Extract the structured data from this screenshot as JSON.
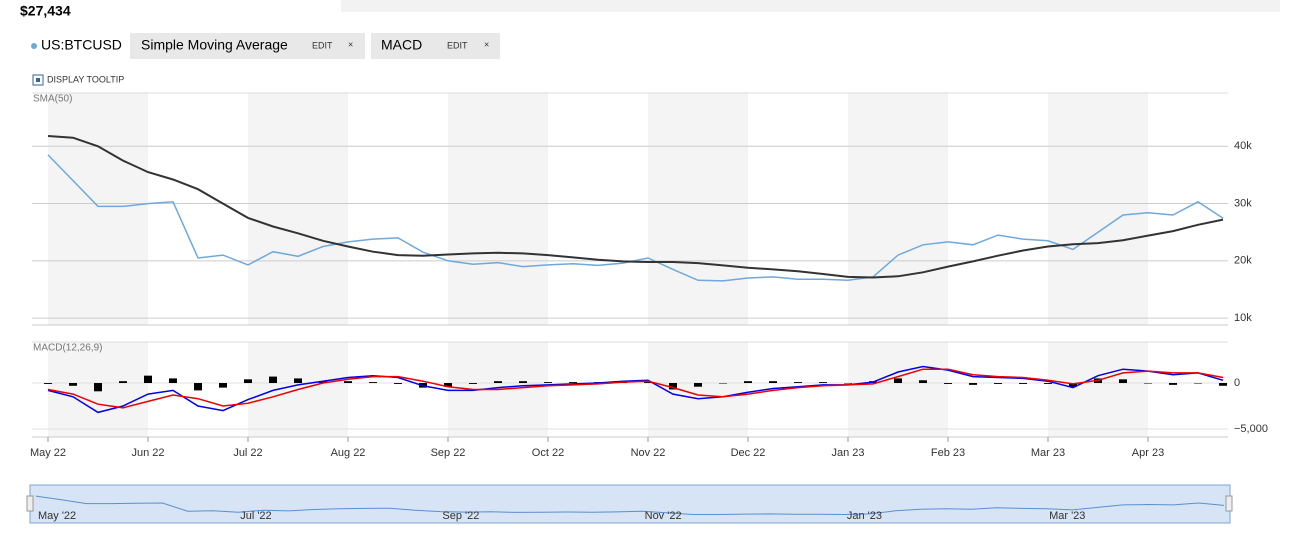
{
  "header": {
    "price": "$27,434"
  },
  "toolbar": {
    "indicators": [
      {
        "name": "Simple Moving Average",
        "edit": "EDIT",
        "close": "×"
      },
      {
        "name": "MACD",
        "edit": "EDIT",
        "close": "×"
      }
    ],
    "tooltip": "DISPLAY TOOLTIP"
  },
  "navigator": {
    "labels": [
      "May '22",
      "Jul '22",
      "Sep '22",
      "Nov '22",
      "Jan '23",
      "Mar '23"
    ]
  },
  "chart_data": [
    {
      "type": "line",
      "categories": [
        "May 22",
        null,
        null,
        null,
        "Jun 22",
        null,
        null,
        null,
        "Jul 22",
        null,
        null,
        null,
        "Aug 22",
        null,
        null,
        null,
        "Sep 22",
        null,
        null,
        null,
        "Oct 22",
        null,
        null,
        null,
        "Nov 22",
        null,
        null,
        null,
        "Dec 22",
        null,
        null,
        null,
        "Jan 23",
        null,
        null,
        null,
        "Feb 23",
        null,
        null,
        null,
        "Mar 23",
        null,
        null,
        null,
        "Apr 23",
        null,
        null,
        null
      ],
      "series": [
        {
          "name": "US:BTCUSD",
          "color": "#6fa8dc",
          "values": [
            38500,
            34000,
            29500,
            29500,
            30000,
            30300,
            20500,
            21000,
            19300,
            21600,
            20800,
            22500,
            23300,
            23800,
            24000,
            21500,
            20000,
            19400,
            19700,
            19000,
            19300,
            19500,
            19200,
            19600,
            20500,
            18500,
            16600,
            16500,
            17000,
            17200,
            16800,
            16800,
            16600,
            17200,
            21000,
            22800,
            23300,
            22800,
            24500,
            23800,
            23500,
            22000,
            25000,
            28000,
            28400,
            28000,
            30300,
            27434
          ]
        },
        {
          "name": "SMA(50)",
          "color": "#333333",
          "values": [
            41800,
            41500,
            40000,
            37500,
            35500,
            34200,
            32500,
            30000,
            27500,
            26000,
            24800,
            23500,
            22500,
            21600,
            21000,
            20900,
            21100,
            21300,
            21400,
            21300,
            21000,
            20600,
            20200,
            19900,
            19800,
            19800,
            19600,
            19200,
            18800,
            18500,
            18200,
            17700,
            17200,
            17100,
            17300,
            18000,
            19000,
            19900,
            20900,
            21800,
            22500,
            22900,
            23100,
            23600,
            24400,
            25200,
            26300,
            27200
          ]
        }
      ],
      "ylim": [
        8800,
        49300
      ],
      "yticks": [
        {
          "value": 10000,
          "label": "10k"
        },
        {
          "value": 20000,
          "label": "20k"
        },
        {
          "value": 30000,
          "label": "30k"
        },
        {
          "value": 40000,
          "label": "40k"
        }
      ],
      "grid": true
    },
    {
      "type": "macd",
      "title": "MACD(12,26,9)",
      "series": [
        {
          "type": "bar",
          "color": "#000000",
          "values": [
            -100,
            -300,
            -900,
            200,
            800,
            500,
            -800,
            -500,
            400,
            700,
            500,
            200,
            200,
            100,
            -100,
            -500,
            -400,
            -100,
            200,
            200,
            100,
            100,
            100,
            100,
            100,
            -700,
            -400,
            0,
            200,
            200,
            100,
            100,
            0,
            200,
            500,
            300,
            -100,
            -200,
            -100,
            -100,
            -100,
            -400,
            500,
            400,
            0,
            -200,
            0,
            -300
          ]
        },
        {
          "type": "line",
          "color": "#0000ee",
          "values": [
            -800,
            -1500,
            -3200,
            -2500,
            -1200,
            -800,
            -2500,
            -3000,
            -1800,
            -800,
            -200,
            200,
            600,
            800,
            600,
            -300,
            -800,
            -800,
            -500,
            -300,
            -200,
            -100,
            0,
            200,
            300,
            -1200,
            -1700,
            -1500,
            -1000,
            -600,
            -400,
            -200,
            -200,
            100,
            1200,
            1800,
            1400,
            700,
            600,
            500,
            200,
            -500,
            800,
            1500,
            1300,
            900,
            1100,
            300
          ]
        },
        {
          "type": "line",
          "color": "#ee0000",
          "values": [
            -700,
            -1200,
            -2300,
            -2700,
            -2000,
            -1300,
            -1700,
            -2500,
            -2200,
            -1500,
            -700,
            0,
            400,
            700,
            700,
            200,
            -400,
            -700,
            -700,
            -500,
            -300,
            -200,
            -100,
            100,
            200,
            -500,
            -1300,
            -1500,
            -1200,
            -800,
            -500,
            -300,
            -200,
            -100,
            700,
            1500,
            1500,
            900,
            700,
            600,
            300,
            -100,
            300,
            1100,
            1300,
            1100,
            1100,
            600
          ]
        }
      ],
      "ylim": [
        -5870,
        4460
      ],
      "yticks": [
        0,
        {
          "value": -5000,
          "label": "−5,000"
        }
      ]
    }
  ]
}
